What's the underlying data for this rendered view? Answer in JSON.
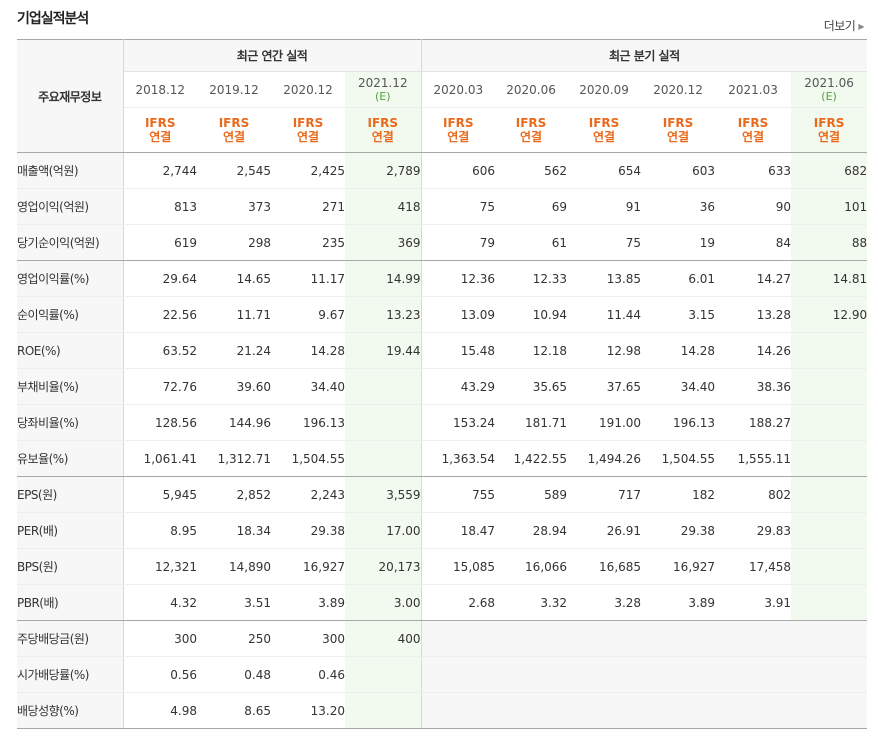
{
  "section_title": "기업실적분석",
  "more_label": "더보기",
  "table": {
    "row_header": "주요재무정보",
    "annual_group": "최근 연간 실적",
    "quarter_group": "최근 분기 실적",
    "periods": [
      {
        "date": "2018.12",
        "est": "",
        "acct1": "IFRS",
        "acct2": "연결"
      },
      {
        "date": "2019.12",
        "est": "",
        "acct1": "IFRS",
        "acct2": "연결"
      },
      {
        "date": "2020.12",
        "est": "",
        "acct1": "IFRS",
        "acct2": "연결"
      },
      {
        "date": "2021.12",
        "est": "(E)",
        "acct1": "IFRS",
        "acct2": "연결"
      },
      {
        "date": "2020.03",
        "est": "",
        "acct1": "IFRS",
        "acct2": "연결"
      },
      {
        "date": "2020.06",
        "est": "",
        "acct1": "IFRS",
        "acct2": "연결"
      },
      {
        "date": "2020.09",
        "est": "",
        "acct1": "IFRS",
        "acct2": "연결"
      },
      {
        "date": "2020.12",
        "est": "",
        "acct1": "IFRS",
        "acct2": "연결"
      },
      {
        "date": "2021.03",
        "est": "",
        "acct1": "IFRS",
        "acct2": "연결"
      },
      {
        "date": "2021.06",
        "est": "(E)",
        "acct1": "IFRS",
        "acct2": "연결"
      }
    ],
    "rows": [
      {
        "label": "매출액(억원)",
        "values": [
          "2,744",
          "2,545",
          "2,425",
          "2,789",
          "606",
          "562",
          "654",
          "603",
          "633",
          "682"
        ]
      },
      {
        "label": "영업이익(억원)",
        "values": [
          "813",
          "373",
          "271",
          "418",
          "75",
          "69",
          "91",
          "36",
          "90",
          "101"
        ]
      },
      {
        "label": "당기순이익(억원)",
        "values": [
          "619",
          "298",
          "235",
          "369",
          "79",
          "61",
          "75",
          "19",
          "84",
          "88"
        ]
      },
      {
        "label": "영업이익률(%)",
        "values": [
          "29.64",
          "14.65",
          "11.17",
          "14.99",
          "12.36",
          "12.33",
          "13.85",
          "6.01",
          "14.27",
          "14.81"
        ]
      },
      {
        "label": "순이익률(%)",
        "values": [
          "22.56",
          "11.71",
          "9.67",
          "13.23",
          "13.09",
          "10.94",
          "11.44",
          "3.15",
          "13.28",
          "12.90"
        ]
      },
      {
        "label": "ROE(%)",
        "values": [
          "63.52",
          "21.24",
          "14.28",
          "19.44",
          "15.48",
          "12.18",
          "12.98",
          "14.28",
          "14.26",
          ""
        ]
      },
      {
        "label": "부채비율(%)",
        "values": [
          "72.76",
          "39.60",
          "34.40",
          "",
          "43.29",
          "35.65",
          "37.65",
          "34.40",
          "38.36",
          ""
        ]
      },
      {
        "label": "당좌비율(%)",
        "values": [
          "128.56",
          "144.96",
          "196.13",
          "",
          "153.24",
          "181.71",
          "191.00",
          "196.13",
          "188.27",
          ""
        ]
      },
      {
        "label": "유보율(%)",
        "values": [
          "1,061.41",
          "1,312.71",
          "1,504.55",
          "",
          "1,363.54",
          "1,422.55",
          "1,494.26",
          "1,504.55",
          "1,555.11",
          ""
        ]
      },
      {
        "label": "EPS(원)",
        "values": [
          "5,945",
          "2,852",
          "2,243",
          "3,559",
          "755",
          "589",
          "717",
          "182",
          "802",
          ""
        ]
      },
      {
        "label": "PER(배)",
        "values": [
          "8.95",
          "18.34",
          "29.38",
          "17.00",
          "18.47",
          "28.94",
          "26.91",
          "29.38",
          "29.83",
          ""
        ]
      },
      {
        "label": "BPS(원)",
        "values": [
          "12,321",
          "14,890",
          "16,927",
          "20,173",
          "15,085",
          "16,066",
          "16,685",
          "16,927",
          "17,458",
          ""
        ]
      },
      {
        "label": "PBR(배)",
        "values": [
          "4.32",
          "3.51",
          "3.89",
          "3.00",
          "2.68",
          "3.32",
          "3.28",
          "3.89",
          "3.91",
          ""
        ]
      },
      {
        "label": "주당배당금(원)",
        "values": [
          "300",
          "250",
          "300",
          "400",
          "",
          "",
          "",
          "",
          "",
          ""
        ]
      },
      {
        "label": "시가배당률(%)",
        "values": [
          "0.56",
          "0.48",
          "0.46",
          "",
          "",
          "",
          "",
          "",
          "",
          ""
        ]
      },
      {
        "label": "배당성향(%)",
        "values": [
          "4.98",
          "8.65",
          "13.20",
          "",
          "",
          "",
          "",
          "",
          "",
          ""
        ]
      }
    ]
  },
  "colors": {
    "ifrs_label": "#ea6a1c",
    "estimate_label": "#54a240",
    "estimate_column_bg": "#f2f9ef",
    "header_bg": "#f7f7f7"
  }
}
